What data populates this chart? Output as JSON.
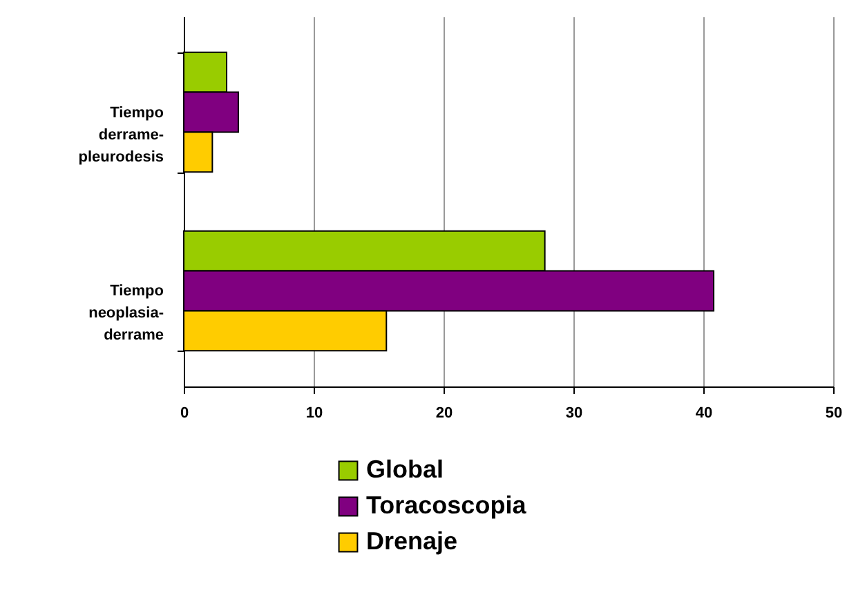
{
  "chart_data": {
    "type": "bar",
    "orientation": "horizontal",
    "categories": [
      "Tiempo derrame-pleurodesis",
      "Tiempo neoplasia-derrame"
    ],
    "series": [
      {
        "name": "Global",
        "color": "#99cc00",
        "values": [
          3.3,
          27.8
        ]
      },
      {
        "name": "Toracoscopia",
        "color": "#800080",
        "values": [
          4.2,
          40.8
        ]
      },
      {
        "name": "Drenaje",
        "color": "#ffcc00",
        "values": [
          2.2,
          15.6
        ]
      }
    ],
    "xlim": [
      0,
      50
    ],
    "xticks": [
      0,
      10,
      20,
      30,
      40,
      50
    ],
    "grid": "x",
    "legend": "bottom"
  }
}
